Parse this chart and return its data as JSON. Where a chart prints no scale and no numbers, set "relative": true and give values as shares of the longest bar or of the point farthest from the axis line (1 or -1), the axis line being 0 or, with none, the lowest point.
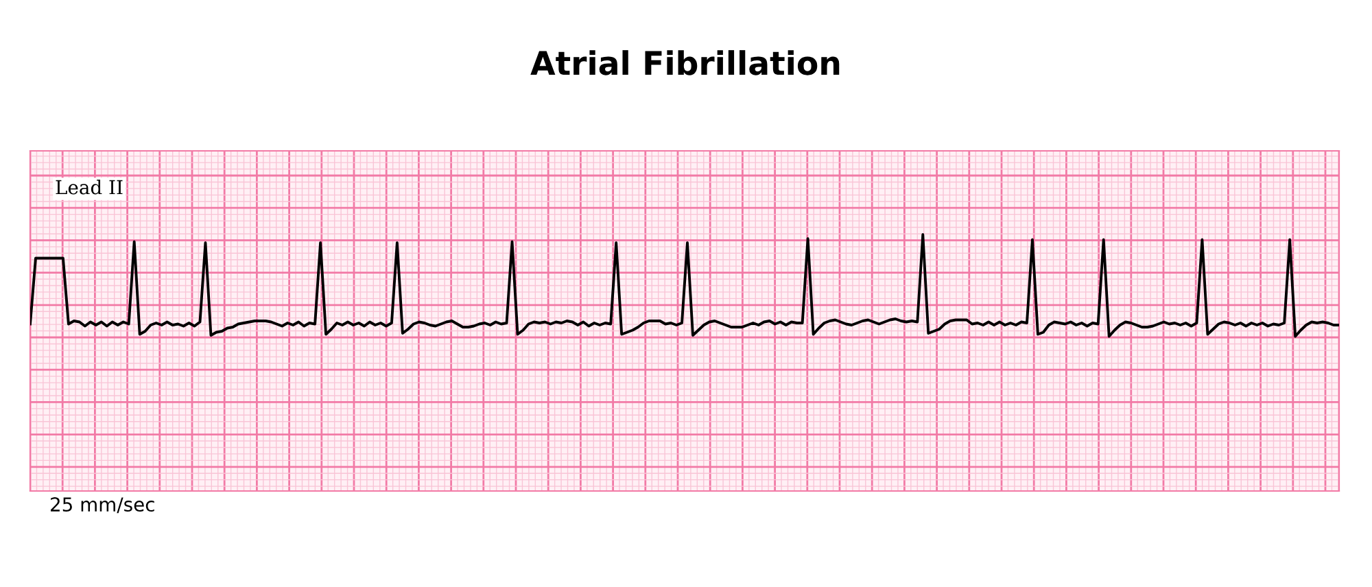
{
  "chart_data": {
    "type": "line",
    "title": "Atrial Fibrillation",
    "relative": true,
    "grid": true,
    "tick_labels": false,
    "marker": "none",
    "line_style": "solid",
    "annotations": [
      "Lead II",
      "25 mm/sec"
    ],
    "categories": [
      null,
      null,
      null,
      null,
      null,
      null,
      null,
      null,
      null,
      null,
      null,
      null,
      null,
      null,
      null,
      null,
      null,
      null,
      null,
      null,
      null,
      null,
      null,
      null,
      null,
      null,
      null,
      null,
      null,
      null,
      null,
      null,
      null,
      null,
      null,
      null,
      null,
      null,
      null,
      null,
      null,
      null,
      null,
      null,
      null,
      null,
      null,
      null,
      null,
      null,
      null,
      null,
      null,
      null,
      null,
      null,
      null,
      null,
      null,
      null,
      null,
      null,
      null,
      null,
      null,
      null,
      null,
      null,
      null,
      null,
      null,
      null,
      null,
      null,
      null,
      null,
      null,
      null,
      null,
      null,
      null,
      null,
      null,
      null,
      null,
      null,
      null,
      null,
      null,
      null,
      null,
      null,
      null,
      null,
      null,
      null,
      null,
      null,
      null,
      null,
      null,
      null,
      null,
      null,
      null,
      null,
      null,
      null,
      null,
      null,
      null,
      null,
      null,
      null,
      null,
      null,
      null,
      null,
      null,
      null,
      null,
      null,
      null,
      null,
      null,
      null,
      null,
      null,
      null,
      null,
      null,
      null,
      null,
      null,
      null,
      null,
      null,
      null,
      null,
      null,
      null,
      null,
      null,
      null,
      null,
      null,
      null,
      null,
      null,
      null,
      null,
      null,
      null,
      null,
      null,
      null,
      null,
      null,
      null,
      null,
      null,
      null,
      null,
      null,
      null,
      null,
      null,
      null,
      null,
      null,
      null,
      null,
      null,
      null,
      null,
      null,
      null,
      null,
      null,
      null,
      null,
      null,
      null,
      null,
      null,
      null,
      null,
      null,
      null,
      null,
      null,
      null,
      null,
      null,
      null,
      null,
      null,
      null,
      null,
      null,
      null,
      null,
      null,
      null,
      null,
      null,
      null,
      null,
      null,
      null,
      null,
      null,
      null,
      null,
      null,
      null,
      null,
      null,
      null,
      null,
      null,
      null,
      null,
      null,
      null,
      null,
      null,
      null,
      null,
      null,
      null,
      null,
      null,
      null,
      null,
      null,
      null,
      null,
      null,
      null
    ],
    "series": [
      {
        "color": "#000000",
        "values": [
          0.13,
          0.77,
          0.77,
          0.77,
          0.77,
          0.77,
          0.77,
          0.13,
          0.16,
          0.15,
          0.11,
          0.15,
          0.12,
          0.15,
          0.11,
          0.15,
          0.12,
          0.15,
          0.13,
          0.93,
          0.03,
          0.06,
          0.12,
          0.14,
          0.12,
          0.15,
          0.12,
          0.13,
          0.11,
          0.14,
          0.11,
          0.15,
          0.92,
          0.02,
          0.05,
          0.06,
          0.09,
          0.1,
          0.13,
          0.14,
          0.15,
          0.16,
          0.16,
          0.16,
          0.15,
          0.13,
          0.11,
          0.14,
          0.12,
          0.15,
          0.11,
          0.14,
          0.13,
          0.92,
          0.03,
          0.08,
          0.14,
          0.12,
          0.15,
          0.12,
          0.14,
          0.11,
          0.15,
          0.12,
          0.14,
          0.11,
          0.14,
          0.92,
          0.04,
          0.08,
          0.13,
          0.15,
          0.14,
          0.12,
          0.11,
          0.13,
          0.15,
          0.16,
          0.13,
          0.1,
          0.1,
          0.11,
          0.13,
          0.14,
          0.12,
          0.15,
          0.13,
          0.14,
          0.93,
          0.03,
          0.07,
          0.13,
          0.15,
          0.14,
          0.15,
          0.13,
          0.15,
          0.14,
          0.16,
          0.15,
          0.12,
          0.15,
          0.11,
          0.14,
          0.12,
          0.14,
          0.13,
          0.92,
          0.03,
          0.05,
          0.07,
          0.1,
          0.14,
          0.16,
          0.16,
          0.16,
          0.13,
          0.14,
          0.12,
          0.14,
          0.92,
          0.02,
          0.07,
          0.12,
          0.15,
          0.16,
          0.14,
          0.12,
          0.1,
          0.1,
          0.1,
          0.12,
          0.14,
          0.12,
          0.15,
          0.16,
          0.13,
          0.15,
          0.12,
          0.15,
          0.14,
          0.14,
          0.96,
          0.03,
          0.09,
          0.14,
          0.16,
          0.17,
          0.15,
          0.13,
          0.12,
          0.14,
          0.16,
          0.17,
          0.15,
          0.13,
          0.15,
          0.17,
          0.18,
          0.16,
          0.15,
          0.16,
          0.15,
          1.0,
          0.04,
          0.06,
          0.08,
          0.13,
          0.16,
          0.17,
          0.17,
          0.17,
          0.13,
          0.14,
          0.12,
          0.15,
          0.12,
          0.15,
          0.12,
          0.14,
          0.12,
          0.15,
          0.14,
          0.95,
          0.03,
          0.05,
          0.12,
          0.15,
          0.14,
          0.13,
          0.15,
          0.12,
          0.14,
          0.11,
          0.14,
          0.13,
          0.95,
          0.01,
          0.07,
          0.12,
          0.15,
          0.14,
          0.12,
          0.1,
          0.1,
          0.11,
          0.13,
          0.15,
          0.13,
          0.14,
          0.12,
          0.14,
          0.11,
          0.14,
          0.95,
          0.03,
          0.08,
          0.13,
          0.15,
          0.14,
          0.12,
          0.14,
          0.11,
          0.14,
          0.12,
          0.14,
          0.11,
          0.13,
          0.12,
          0.14,
          0.95,
          0.01,
          0.07,
          0.12,
          0.15,
          0.14,
          0.15,
          0.14,
          0.12,
          0.12
        ]
      }
    ]
  }
}
